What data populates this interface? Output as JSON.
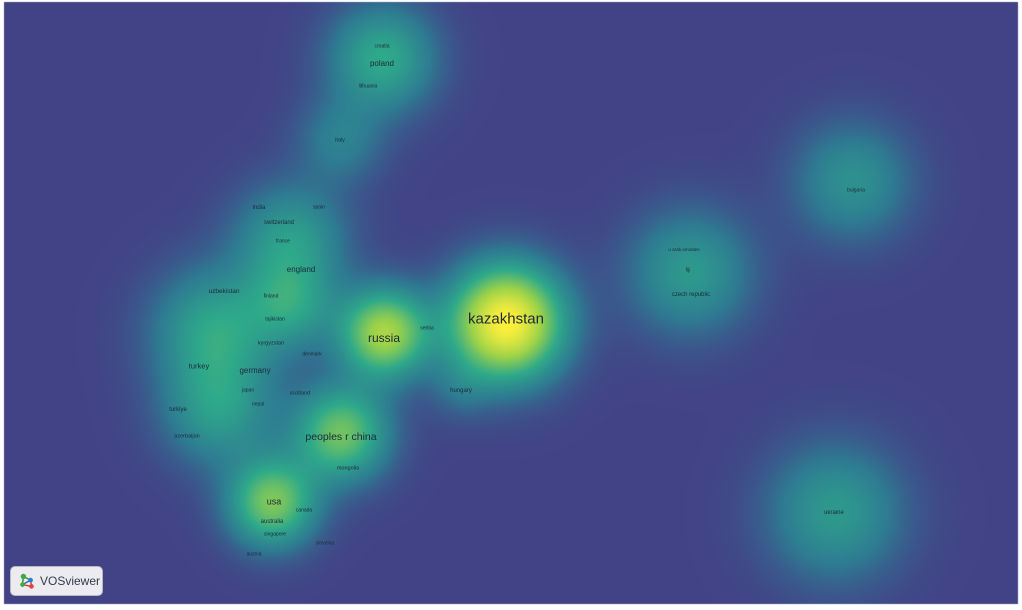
{
  "colors": {
    "background": "#424387",
    "hot": "#fff03a",
    "warm": "#9bd24a",
    "mid": "#2ea98a",
    "cool": "#2e7c92"
  },
  "nodes": [
    {
      "key": "kazakhstan",
      "label": "kazakhstan",
      "weight": 1.0
    },
    {
      "key": "russia",
      "label": "russia",
      "weight": 0.65
    },
    {
      "key": "peoples_r_china",
      "label": "peoples r china",
      "weight": 0.5
    },
    {
      "key": "usa",
      "label": "usa",
      "weight": 0.45
    },
    {
      "key": "poland",
      "label": "poland",
      "weight": 0.3
    },
    {
      "key": "croatia",
      "label": "croatia",
      "weight": 0.1
    },
    {
      "key": "lithuania",
      "label": "lithuania",
      "weight": 0.12
    },
    {
      "key": "italy",
      "label": "italy",
      "weight": 0.15
    },
    {
      "key": "india",
      "label": "india",
      "weight": 0.18
    },
    {
      "key": "spain",
      "label": "spain",
      "weight": 0.12
    },
    {
      "key": "switzerland",
      "label": "switzerland",
      "weight": 0.15
    },
    {
      "key": "france",
      "label": "france",
      "weight": 0.12
    },
    {
      "key": "england",
      "label": "england",
      "weight": 0.25
    },
    {
      "key": "uzbekistan",
      "label": "uzbekistan",
      "weight": 0.22
    },
    {
      "key": "finland",
      "label": "finland",
      "weight": 0.1
    },
    {
      "key": "tajikistan",
      "label": "tajikistan",
      "weight": 0.12
    },
    {
      "key": "kyrgyzstan",
      "label": "kyrgyzstan",
      "weight": 0.15
    },
    {
      "key": "denmark",
      "label": "denmark",
      "weight": 0.1
    },
    {
      "key": "serbia",
      "label": "serbia",
      "weight": 0.1
    },
    {
      "key": "turkey",
      "label": "turkey",
      "weight": 0.2
    },
    {
      "key": "germany",
      "label": "germany",
      "weight": 0.25
    },
    {
      "key": "japan",
      "label": "japan",
      "weight": 0.1
    },
    {
      "key": "scotland",
      "label": "scotland",
      "weight": 0.12
    },
    {
      "key": "nepal",
      "label": "nepal",
      "weight": 0.1
    },
    {
      "key": "turkiye",
      "label": "turkiye",
      "weight": 0.15
    },
    {
      "key": "azerbaijan",
      "label": "azerbaijan",
      "weight": 0.15
    },
    {
      "key": "hungary",
      "label": "hungary",
      "weight": 0.15
    },
    {
      "key": "mongolia",
      "label": "mongolia",
      "weight": 0.12
    },
    {
      "key": "canada",
      "label": "canada",
      "weight": 0.1
    },
    {
      "key": "australia",
      "label": "australia",
      "weight": 0.15
    },
    {
      "key": "singapore",
      "label": "singapore",
      "weight": 0.1
    },
    {
      "key": "slovenia",
      "label": "slovenia",
      "weight": 0.1
    },
    {
      "key": "austria",
      "label": "austria",
      "weight": 0.1
    },
    {
      "key": "u_arab_emirates",
      "label": "u arab emirates",
      "weight": 0.1
    },
    {
      "key": "fiji",
      "label": "fiji",
      "weight": 0.1
    },
    {
      "key": "czech_republic",
      "label": "czech republic",
      "weight": 0.15
    },
    {
      "key": "bulgaria",
      "label": "bulgaria",
      "weight": 0.12
    },
    {
      "key": "ukraine",
      "label": "ukraine",
      "weight": 0.15
    }
  ],
  "logo": {
    "text": "VOSviewer",
    "icon": "vosviewer-logo-icon"
  }
}
